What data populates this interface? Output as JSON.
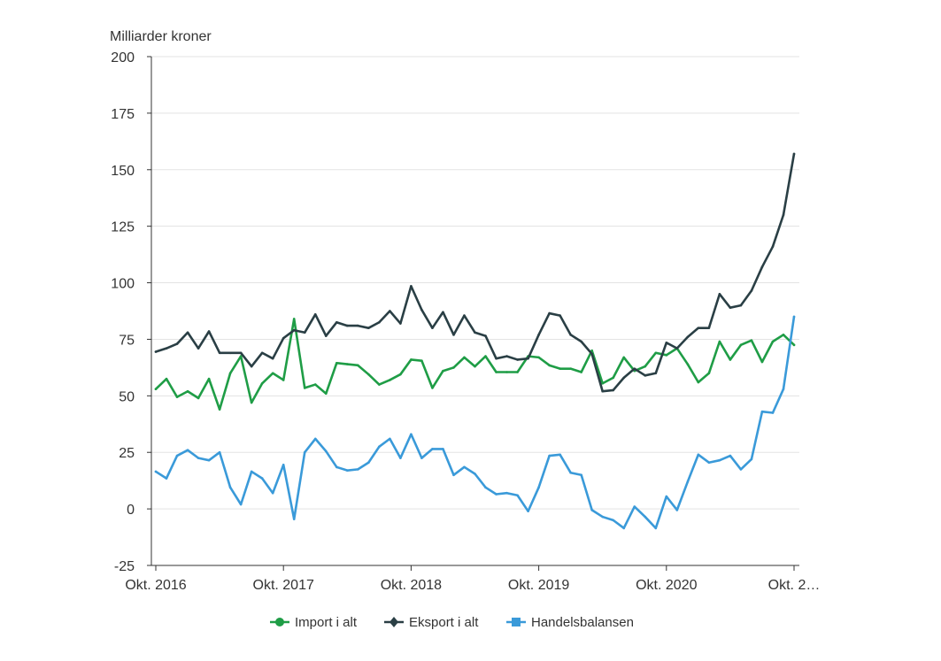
{
  "chart_data": {
    "type": "line",
    "title": "",
    "ylabel": "Milliarder kroner",
    "xlabel": "",
    "ylim": [
      -25,
      200
    ],
    "yticks": [
      -25,
      0,
      25,
      50,
      75,
      100,
      125,
      150,
      175,
      200
    ],
    "xticks": [
      {
        "index": 0,
        "label": "Okt. 2016"
      },
      {
        "index": 12,
        "label": "Okt. 2017"
      },
      {
        "index": 24,
        "label": "Okt. 2018"
      },
      {
        "index": 36,
        "label": "Okt. 2019"
      },
      {
        "index": 48,
        "label": "Okt. 2020"
      },
      {
        "index": 60,
        "label": "Okt. 2…"
      }
    ],
    "x_start": "2016-10",
    "x_end": "2021-10",
    "grid": "horizontal",
    "legend_position": "bottom",
    "series": [
      {
        "name": "Import i alt",
        "color": "#1f9d46",
        "marker": "circle",
        "values": [
          53,
          57.5,
          49.5,
          52,
          49,
          57.5,
          44,
          60,
          67.5,
          47,
          55.5,
          60,
          57,
          84,
          53.5,
          55,
          51,
          64.5,
          64,
          63.5,
          59.5,
          55,
          57,
          59.5,
          66,
          65.5,
          53.5,
          61,
          62.5,
          67,
          63,
          67.5,
          60.5,
          60.5,
          60.5,
          67.5,
          67,
          63.5,
          62,
          62,
          60.5,
          70,
          55.5,
          58,
          67,
          61,
          63,
          69,
          68,
          71,
          64,
          56,
          60,
          74,
          66,
          72.5,
          74.5,
          65,
          74,
          77,
          72.5
        ]
      },
      {
        "name": "Eksport i alt",
        "color": "#2a3f45",
        "marker": "diamond",
        "values": [
          69.5,
          71,
          73,
          78,
          71,
          78.5,
          69,
          69,
          69,
          63,
          69,
          66.5,
          75.5,
          79,
          78,
          86,
          76.5,
          82.5,
          81,
          81,
          80,
          82.5,
          87.5,
          82,
          98.5,
          88,
          80,
          87,
          77,
          85.5,
          78,
          76.5,
          66.5,
          67.5,
          66,
          66.5,
          77,
          86.5,
          85.5,
          77,
          74,
          68.5,
          52,
          52.5,
          58,
          62,
          59,
          60,
          73.5,
          71,
          76,
          80,
          80,
          95,
          89,
          90,
          96.5,
          107,
          116,
          130,
          157
        ]
      },
      {
        "name": "Handelsbalansen",
        "color": "#3a9ad9",
        "marker": "square",
        "values": [
          16.5,
          13.5,
          23.5,
          26,
          22.5,
          21.5,
          25,
          9.5,
          2,
          16.5,
          13.5,
          7,
          19.5,
          -4.5,
          25,
          31,
          25.5,
          18.5,
          17,
          17.5,
          20.5,
          27.5,
          31,
          22.5,
          33,
          22.5,
          26.5,
          26.5,
          15,
          18.5,
          15.5,
          9.5,
          6.5,
          7,
          6,
          -1,
          9.5,
          23.5,
          24,
          16,
          15,
          -0.5,
          -3.5,
          -5,
          -8.5,
          1,
          -3.5,
          -8.5,
          5.5,
          -0.5,
          12,
          24,
          20.5,
          21.5,
          23.5,
          17.5,
          22,
          43,
          42.5,
          53,
          85
        ]
      }
    ]
  }
}
